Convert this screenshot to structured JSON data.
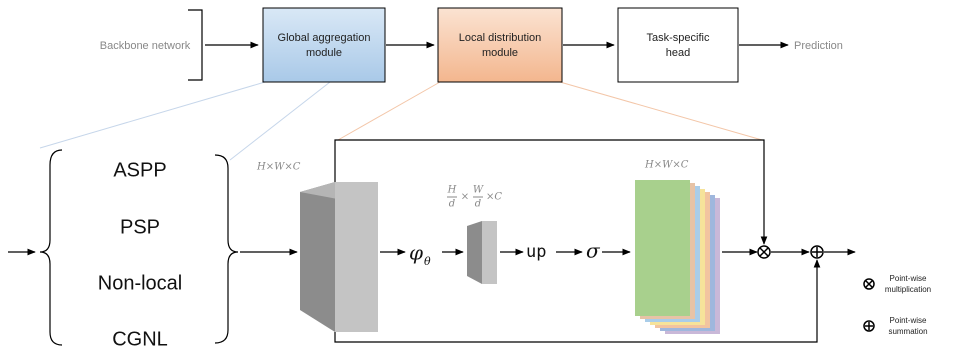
{
  "pipeline": {
    "nodes": [
      {
        "label_lines": [
          "Backbone network"
        ]
      },
      {
        "label_lines": [
          "Global aggregation",
          "module"
        ]
      },
      {
        "label_lines": [
          "Local distribution",
          "module"
        ]
      },
      {
        "label_lines": [
          "Task-specific",
          "head"
        ]
      },
      {
        "label_lines": [
          "Prediction"
        ]
      }
    ]
  },
  "methods": [
    "ASPP",
    "PSP",
    "Non-local",
    "CGNL"
  ],
  "module": {
    "input_dims": "H×W×C",
    "small_dims": {
      "h": "H",
      "w": "W",
      "d": "d",
      "times": "×",
      "rest": "×C"
    },
    "operator": {
      "text": "φ",
      "subscript": "θ"
    },
    "up": "up",
    "activation": "σ",
    "output_dims": "H×W×C"
  },
  "legend": [
    {
      "label_lines": [
        "Point-wise",
        "multiplication"
      ]
    },
    {
      "label_lines": [
        "Point-wise",
        "summation"
      ]
    }
  ]
}
